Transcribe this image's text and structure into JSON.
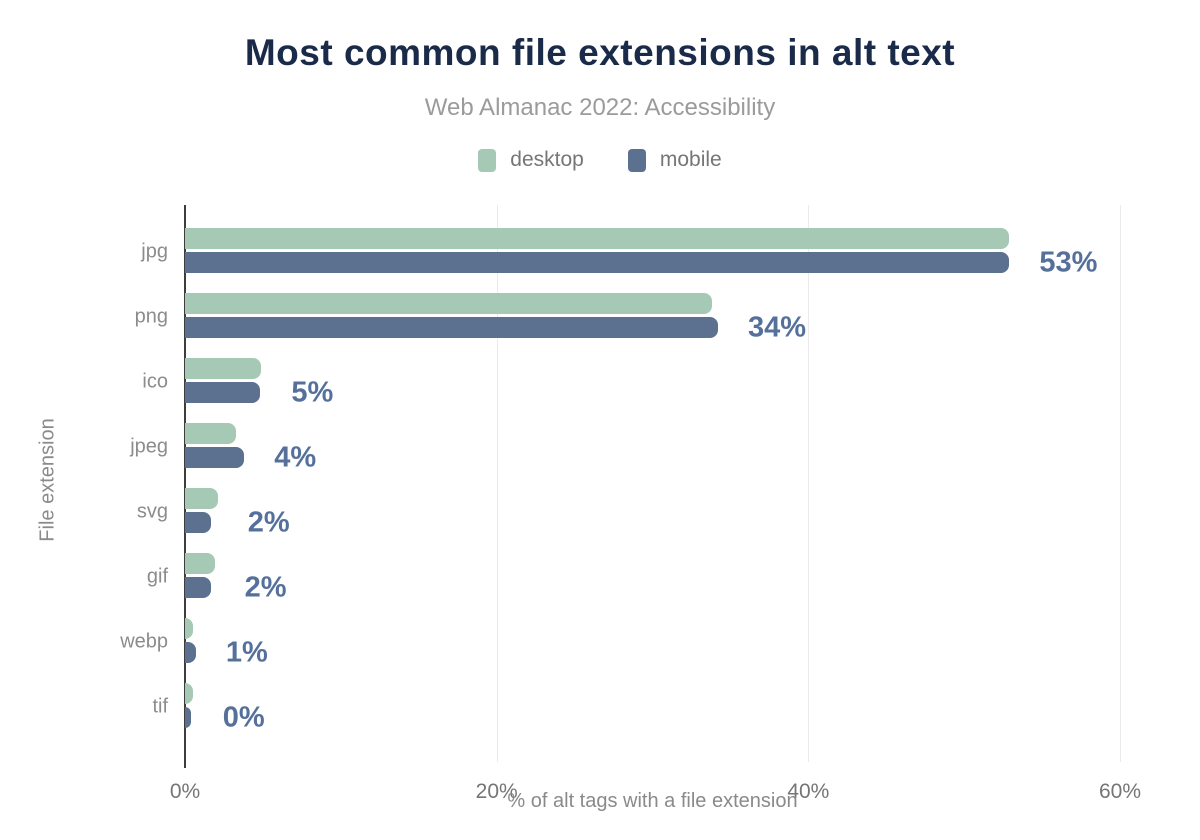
{
  "page": {
    "title": "Most common file extensions in alt text",
    "subtitle": "Web Almanac 2022: Accessibility"
  },
  "legend": [
    {
      "label": "desktop",
      "color": "#a6c9b5"
    },
    {
      "label": "mobile",
      "color": "#5c7190"
    }
  ],
  "chart_data": {
    "type": "bar",
    "orientation": "horizontal",
    "title": "Most common file extensions in alt text",
    "subtitle": "Web Almanac 2022: Accessibility",
    "categories": [
      "jpg",
      "png",
      "ico",
      "jpeg",
      "svg",
      "gif",
      "webp",
      "tif"
    ],
    "series": [
      {
        "name": "desktop",
        "color": "#a6c9b5",
        "values": [
          52.9,
          33.8,
          4.9,
          3.3,
          2.1,
          1.9,
          0.5,
          0.5
        ]
      },
      {
        "name": "mobile",
        "color": "#5c7190",
        "values": [
          52.9,
          34.2,
          4.8,
          3.8,
          1.7,
          1.7,
          0.7,
          0.4
        ]
      }
    ],
    "value_labels": [
      "53%",
      "34%",
      "5%",
      "4%",
      "2%",
      "2%",
      "1%",
      "0%"
    ],
    "xlabel": "% of alt tags with a file extension",
    "ylabel": "File extension",
    "x_ticks": [
      "0%",
      "20%",
      "40%",
      "60%"
    ],
    "x_tick_values": [
      0,
      20,
      40,
      60
    ],
    "xlim": [
      0,
      60
    ],
    "grid": "vertical",
    "legend_position": "top",
    "colors": {
      "title": "#1a2b49",
      "subtitle": "#9b9b9b",
      "value_label": "#55709b",
      "axis_line": "#3d3d3d",
      "gridline": "#ebebeb",
      "tick_label": "#757575",
      "category_label": "#8c8c8c"
    }
  }
}
